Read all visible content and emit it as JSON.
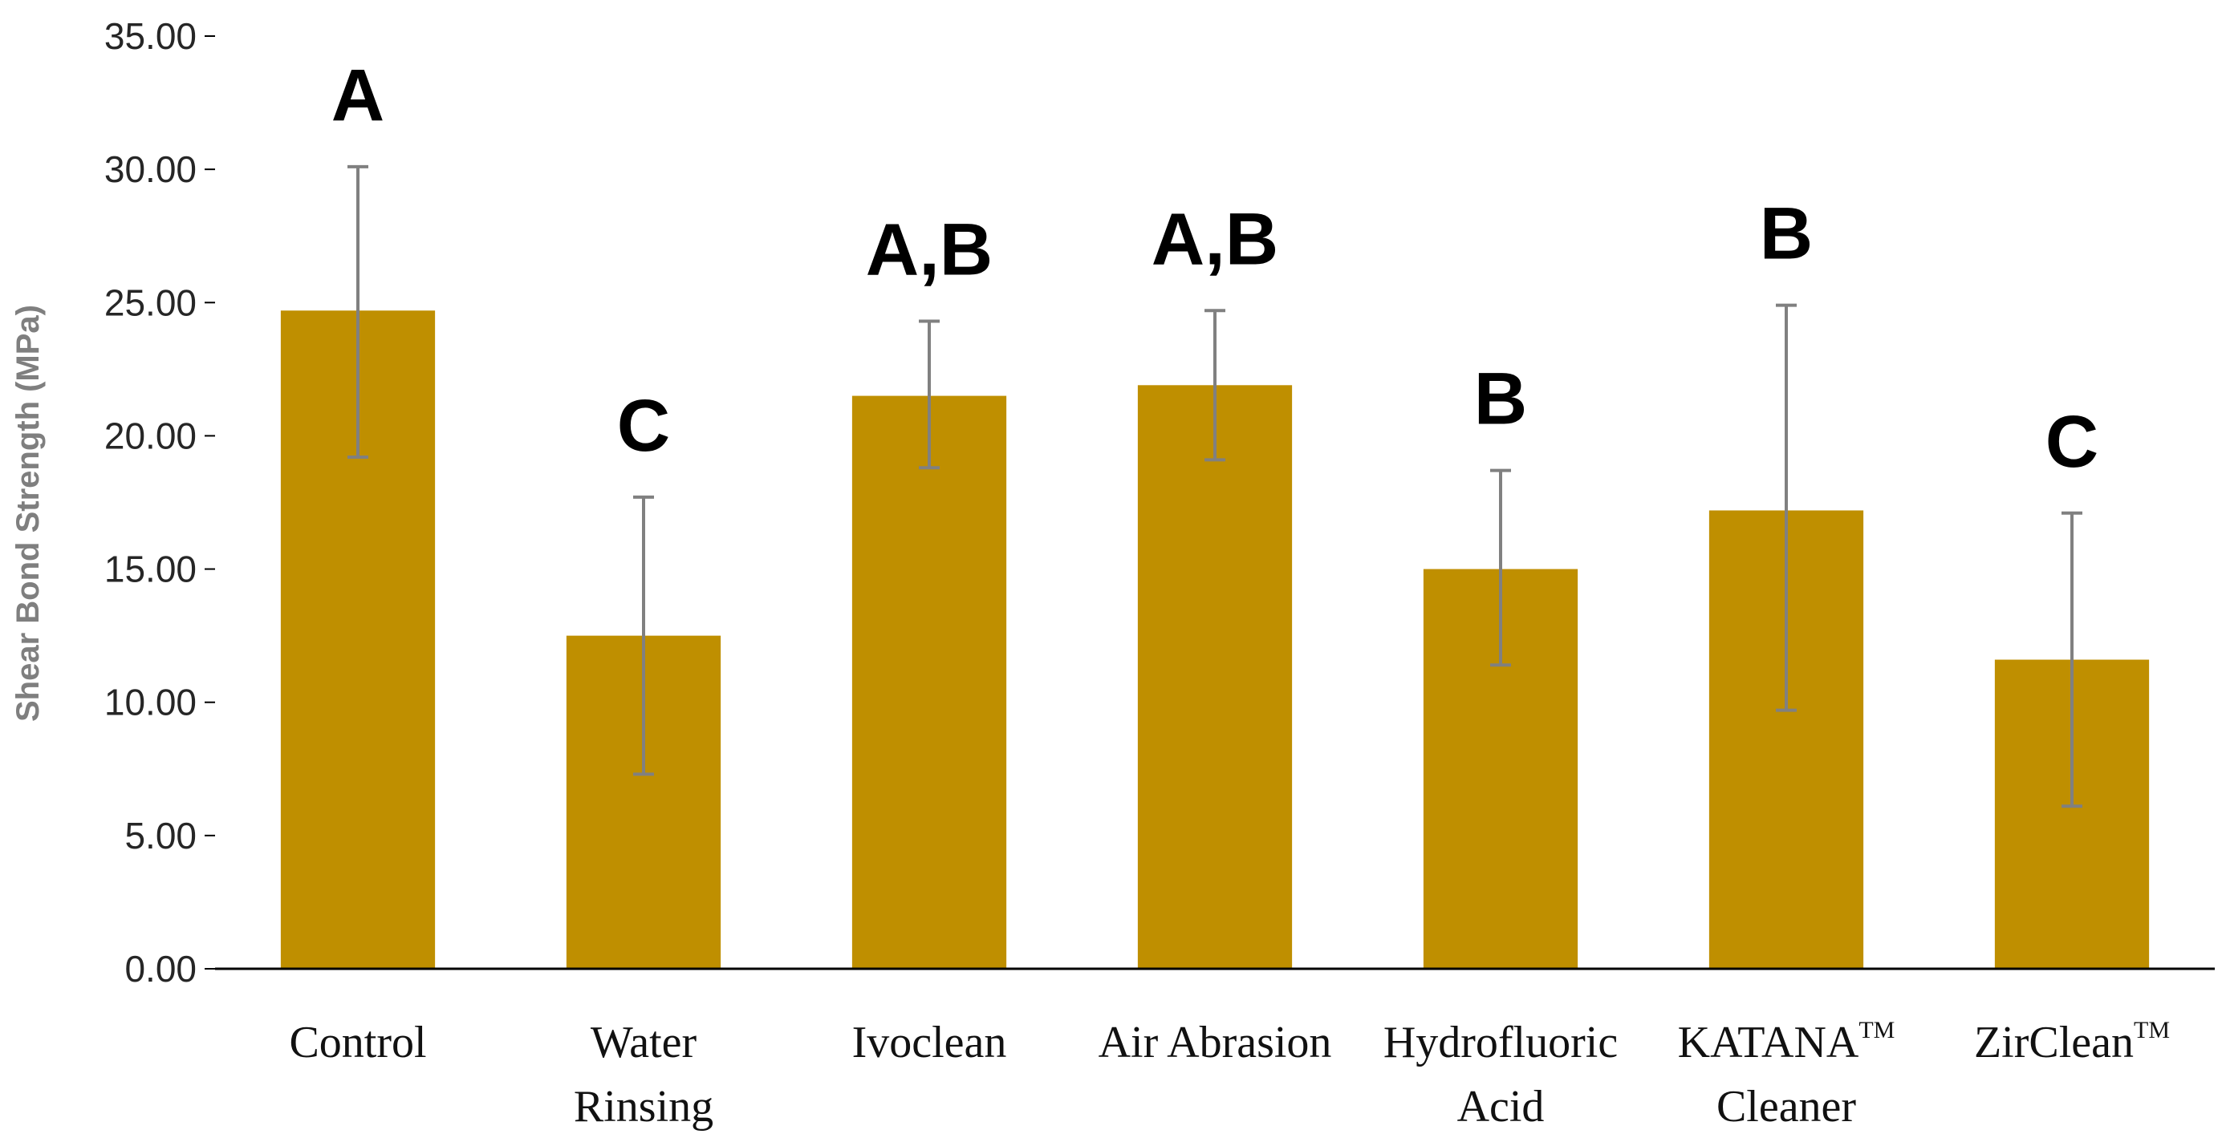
{
  "chart_data": {
    "type": "bar",
    "title": "",
    "xlabel": "",
    "ylabel": "Shear Bond Strength (MPa)",
    "ylim": [
      0,
      35
    ],
    "yticks": [
      "0.00",
      "5.00",
      "10.00",
      "15.00",
      "20.00",
      "25.00",
      "30.00",
      "35.00"
    ],
    "grid": false,
    "legend": "none",
    "bar_color": "#bf8f00",
    "error_bar_color": "#808080",
    "categories": [
      {
        "lines": [
          "Control"
        ],
        "tm": ""
      },
      {
        "lines": [
          "Water",
          "Rinsing"
        ],
        "tm": ""
      },
      {
        "lines": [
          "Ivoclean"
        ],
        "tm": ""
      },
      {
        "lines": [
          "Air Abrasion"
        ],
        "tm": ""
      },
      {
        "lines": [
          "Hydrofluoric",
          "Acid"
        ],
        "tm": ""
      },
      {
        "lines": [
          "KATANA",
          "Cleaner"
        ],
        "tm": "TM"
      },
      {
        "lines": [
          "ZirClean"
        ],
        "tm": "TM"
      }
    ],
    "values": [
      24.7,
      12.5,
      21.5,
      21.9,
      15.0,
      17.2,
      11.6
    ],
    "error_low": [
      19.2,
      7.3,
      18.8,
      19.1,
      11.4,
      9.7,
      6.1
    ],
    "error_high": [
      30.1,
      17.7,
      24.3,
      24.7,
      18.7,
      24.9,
      17.1
    ],
    "significance_labels": [
      "A",
      "C",
      "A,B",
      "A,B",
      "B",
      "B",
      "C"
    ]
  }
}
